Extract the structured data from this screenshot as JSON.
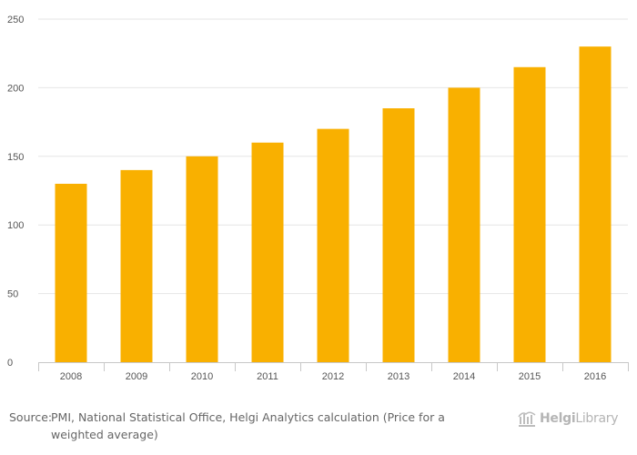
{
  "chart_data": {
    "type": "bar",
    "categories": [
      "2008",
      "2009",
      "2010",
      "2011",
      "2012",
      "2013",
      "2014",
      "2015",
      "2016"
    ],
    "values": [
      130,
      140,
      150,
      160,
      170,
      185,
      200,
      215,
      230
    ],
    "ylim": [
      0,
      250
    ],
    "yticks": [
      0,
      50,
      100,
      150,
      200,
      250
    ],
    "grid": true,
    "bar_color": "#f9b000",
    "grid_color": "#e6e6e6",
    "axis_color": "#c8c8c8"
  },
  "footer": {
    "source_label": "Source:",
    "source_text": "PMI, National Statistical Office, Helgi Analytics calculation (Price for a weighted average)"
  },
  "brand": {
    "name_bold": "Helgi",
    "name_rest": "Library",
    "icon": "helgi-library-logo-icon"
  }
}
